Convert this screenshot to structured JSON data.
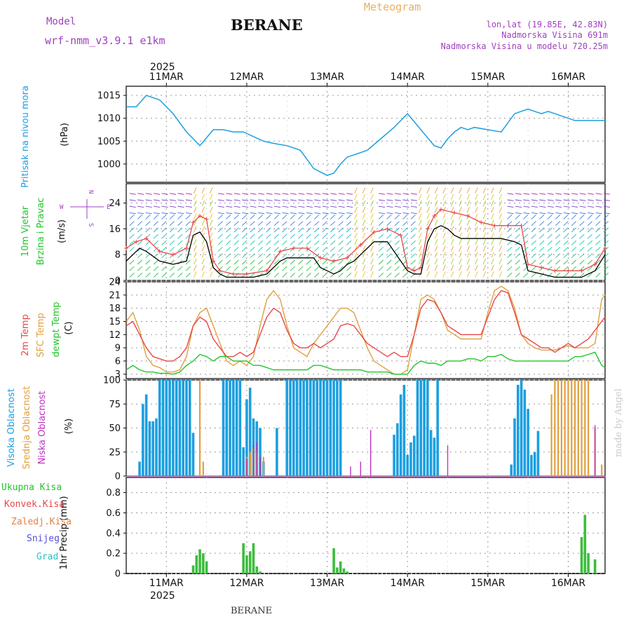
{
  "header": {
    "model_label": "Model",
    "model_name": "wrf-nmm_v3.9.1 e1km",
    "station": "BERANE",
    "meteogram_label": "Meteogram",
    "lonlat": "lon,lat (19.85E, 42.83N)",
    "elevation": "Nadmorska Visina 691m",
    "model_elevation": "Nadmorska Visina u modelu 720.25m",
    "year_top": "2025",
    "year_bottom": "2025",
    "footer_station": "BERANE",
    "watermark": "made by Angel"
  },
  "colors": {
    "pressure": "#1c9fe0",
    "temp2m": "#e8474a",
    "sfc": "#e0a040",
    "dewpt": "#22c52a",
    "high_cloud": "#1c9fe0",
    "mid_cloud": "#e0a040",
    "low_cloud": "#c030c0",
    "precip": "#3cbd3c",
    "wind_speed": "#000000",
    "wind_gust": "#e8474a",
    "axis_purple": "#a040c0"
  },
  "dates": [
    "11MAR",
    "12MAR",
    "13MAR",
    "14MAR",
    "15MAR",
    "16MAR"
  ],
  "chart_data": [
    {
      "type": "line",
      "name": "pressure",
      "ylabel": "Pritisak na nivou mora",
      "unit": "(hPa)",
      "yticks": [
        1000,
        1005,
        1010,
        1015
      ],
      "ylim": [
        996,
        1017
      ],
      "xlim": [
        0,
        143
      ],
      "series": [
        {
          "x": [
            0,
            3,
            6,
            10,
            14,
            18,
            22,
            26,
            29,
            32,
            35,
            38,
            41,
            44,
            48,
            52,
            56,
            60,
            62,
            64,
            66,
            68,
            72,
            76,
            80,
            84,
            88,
            92,
            94,
            96,
            98,
            100,
            102,
            104,
            108,
            112,
            116,
            120,
            122,
            124,
            126,
            128,
            130,
            132,
            134,
            136,
            138,
            140,
            143
          ],
          "y": [
            1012.5,
            1012.5,
            1015,
            1014,
            1011,
            1007,
            1004,
            1007.5,
            1007.5,
            1007,
            1007,
            1006,
            1005,
            1004.5,
            1004,
            1003,
            999,
            997.5,
            998,
            1000,
            1001.5,
            1002,
            1003,
            1005.5,
            1008,
            1011,
            1007.5,
            1004,
            1003.5,
            1005.5,
            1007,
            1008,
            1007.5,
            1008,
            1007.5,
            1007,
            1011,
            1012,
            1011.5,
            1011,
            1011.5,
            1011,
            1010.5,
            1010,
            1009.5,
            1009.5,
            1009.5,
            1009.5,
            1009.5
          ]
        }
      ]
    },
    {
      "type": "line",
      "name": "wind",
      "ylabel": "10m Vjetar Brzina i Pravac",
      "unit": "(m/s)",
      "yticks": [
        0,
        8,
        16,
        24
      ],
      "ylim": [
        0,
        30
      ],
      "xlim": [
        0,
        143
      ],
      "compass": {
        "n": "N",
        "e": "E",
        "w": "W",
        "s": "S"
      },
      "series": [
        {
          "name": "speed",
          "x": [
            0,
            2,
            4,
            6,
            10,
            14,
            18,
            20,
            22,
            24,
            26,
            28,
            30,
            34,
            38,
            42,
            46,
            48,
            50,
            52,
            54,
            56,
            58,
            60,
            62,
            64,
            66,
            68,
            70,
            72,
            74,
            76,
            78,
            80,
            84,
            86,
            88,
            90,
            92,
            94,
            96,
            98,
            100,
            104,
            108,
            112,
            116,
            118,
            120,
            124,
            128,
            132,
            136,
            140,
            143
          ],
          "y": [
            6,
            8,
            10,
            9,
            6,
            5,
            6,
            14,
            15,
            12,
            4,
            2,
            1,
            1,
            1,
            2,
            6,
            7,
            7,
            7,
            7,
            7,
            4,
            3,
            2,
            3,
            5,
            6,
            8,
            10,
            12,
            12,
            12,
            9,
            3,
            2,
            2,
            12,
            16,
            17,
            16,
            14,
            13,
            13,
            13,
            13,
            12,
            11,
            3,
            2,
            1,
            1,
            1,
            3,
            8
          ]
        },
        {
          "name": "gust",
          "x": [
            0,
            3,
            6,
            10,
            14,
            18,
            20,
            22,
            24,
            26,
            28,
            32,
            36,
            42,
            46,
            50,
            54,
            58,
            62,
            66,
            70,
            74,
            78,
            82,
            84,
            86,
            88,
            90,
            92,
            94,
            98,
            102,
            106,
            110,
            114,
            118,
            120,
            124,
            128,
            132,
            136,
            140,
            143
          ],
          "y": [
            10,
            12,
            13,
            9,
            8,
            10,
            18,
            20,
            19,
            6,
            3,
            2,
            2,
            3,
            9,
            10,
            10,
            7,
            6,
            7,
            11,
            15,
            16,
            14,
            4,
            3,
            4,
            16,
            20,
            22,
            21,
            20,
            18,
            17,
            17,
            17,
            5,
            4,
            3,
            3,
            3,
            5,
            10
          ]
        }
      ]
    },
    {
      "type": "line",
      "name": "temperature",
      "ylabel": "2m Temp SFC Temp dewpt Temp",
      "unit": "(C)",
      "yticks": [
        3,
        6,
        9,
        12,
        15,
        18,
        21,
        24
      ],
      "ylim": [
        2,
        24
      ],
      "xlim": [
        0,
        143
      ],
      "series": [
        {
          "name": "2m Temp",
          "x": [
            0,
            2,
            4,
            6,
            8,
            10,
            12,
            14,
            16,
            18,
            20,
            22,
            24,
            26,
            28,
            30,
            32,
            34,
            36,
            38,
            40,
            42,
            44,
            46,
            48,
            50,
            52,
            54,
            56,
            58,
            60,
            62,
            64,
            66,
            68,
            70,
            72,
            74,
            76,
            78,
            80,
            82,
            84,
            86,
            88,
            90,
            92,
            94,
            96,
            98,
            100,
            102,
            104,
            106,
            108,
            110,
            112,
            114,
            116,
            118,
            120,
            122,
            124,
            126,
            128,
            130,
            132,
            134,
            136,
            138,
            140,
            142,
            143
          ],
          "y": [
            14,
            15,
            12,
            9,
            7,
            6.5,
            6,
            6,
            7,
            9,
            14,
            16,
            15,
            11,
            9,
            7,
            7,
            8,
            7,
            8,
            12,
            16,
            18,
            17,
            13,
            10,
            9,
            9,
            10,
            9,
            10,
            11,
            14,
            14.5,
            14,
            12,
            10,
            9,
            8,
            7,
            8,
            7,
            7,
            12,
            18,
            20,
            19.5,
            17,
            14,
            13,
            12,
            12,
            12,
            12,
            16,
            20,
            22,
            21.5,
            17,
            12,
            11,
            10,
            9,
            9,
            8,
            9,
            10,
            9,
            10,
            11,
            13,
            15,
            16
          ]
        },
        {
          "name": "SFC Temp",
          "x": [
            0,
            2,
            4,
            6,
            8,
            10,
            12,
            14,
            16,
            18,
            20,
            22,
            24,
            26,
            28,
            30,
            32,
            34,
            36,
            38,
            40,
            42,
            44,
            46,
            48,
            50,
            52,
            54,
            56,
            58,
            60,
            62,
            64,
            66,
            68,
            70,
            72,
            74,
            76,
            78,
            80,
            82,
            84,
            86,
            88,
            90,
            92,
            94,
            96,
            98,
            100,
            102,
            104,
            106,
            108,
            110,
            112,
            114,
            116,
            118,
            120,
            122,
            124,
            126,
            128,
            130,
            132,
            134,
            136,
            138,
            140,
            142,
            143
          ],
          "y": [
            15,
            17,
            13,
            7,
            5,
            4.5,
            3.5,
            3.5,
            4,
            7,
            14,
            17,
            18,
            14,
            10,
            6,
            5,
            6,
            5,
            7,
            14,
            20,
            22,
            20,
            14,
            9,
            8,
            7,
            10,
            12,
            14,
            16,
            18,
            18,
            17,
            13,
            9,
            6,
            5,
            4,
            3,
            3,
            4,
            12,
            20,
            21,
            20,
            17,
            13,
            12,
            11,
            11,
            11,
            11,
            17,
            22,
            23,
            22,
            18,
            12,
            10,
            9,
            8.5,
            8.5,
            8.5,
            9,
            9.5,
            9,
            9,
            9,
            10,
            20,
            21
          ]
        },
        {
          "name": "dewpt Temp",
          "x": [
            0,
            2,
            4,
            6,
            8,
            10,
            12,
            14,
            16,
            18,
            20,
            22,
            24,
            26,
            28,
            30,
            32,
            34,
            36,
            38,
            40,
            42,
            44,
            46,
            48,
            50,
            52,
            54,
            56,
            58,
            60,
            62,
            64,
            66,
            68,
            70,
            72,
            74,
            76,
            78,
            80,
            82,
            84,
            86,
            88,
            90,
            92,
            94,
            96,
            98,
            100,
            102,
            104,
            106,
            108,
            110,
            112,
            114,
            116,
            118,
            120,
            122,
            124,
            126,
            128,
            130,
            132,
            134,
            136,
            138,
            140,
            142,
            143
          ],
          "y": [
            4,
            5,
            4,
            3.5,
            3.5,
            3.2,
            3.2,
            3,
            3.5,
            5,
            6,
            7.5,
            7,
            6,
            7,
            7,
            6,
            6,
            6,
            5,
            5,
            4.5,
            4,
            4,
            4,
            4,
            4,
            4,
            5,
            5,
            4.5,
            4,
            4,
            4,
            4,
            4,
            3.5,
            3.5,
            3.5,
            3.5,
            3,
            3,
            3,
            5,
            6,
            5.5,
            5.5,
            5,
            6,
            6,
            6,
            6.5,
            6.5,
            6,
            7,
            7,
            7.5,
            6.5,
            6,
            6,
            6,
            6,
            6,
            6,
            6,
            6,
            6,
            7,
            7,
            7.5,
            8,
            5,
            4.5
          ]
        }
      ]
    },
    {
      "type": "bar",
      "name": "cloud",
      "ylabel": "Visoka Oblacnost Srednja Oblacnost Niska Oblacnost",
      "unit": "(%)",
      "yticks": [
        0,
        25,
        50,
        75,
        100
      ],
      "ylim": [
        0,
        100
      ],
      "xlim": [
        0,
        143
      ],
      "series": [
        {
          "name": "Visoka Oblacnost",
          "x": [
            4,
            5,
            6,
            7,
            8,
            9,
            10,
            11,
            12,
            13,
            14,
            15,
            16,
            17,
            18,
            19,
            20,
            29,
            30,
            31,
            32,
            33,
            34,
            35,
            36,
            37,
            38,
            39,
            40,
            41,
            45,
            48,
            49,
            50,
            51,
            52,
            53,
            54,
            55,
            56,
            57,
            58,
            59,
            60,
            61,
            62,
            63,
            64,
            80,
            81,
            82,
            83,
            84,
            85,
            86,
            87,
            88,
            89,
            90,
            91,
            92,
            93,
            115,
            116,
            117,
            118,
            119,
            120,
            121,
            122,
            123
          ],
          "y": [
            15,
            75,
            85,
            57,
            57,
            60,
            100,
            100,
            100,
            100,
            100,
            100,
            100,
            100,
            100,
            100,
            45,
            100,
            100,
            100,
            100,
            100,
            100,
            30,
            80,
            92,
            60,
            57,
            50,
            15,
            50,
            100,
            100,
            100,
            100,
            100,
            100,
            100,
            100,
            100,
            100,
            100,
            100,
            100,
            100,
            100,
            100,
            100,
            43,
            55,
            85,
            95,
            22,
            35,
            42,
            100,
            100,
            100,
            100,
            48,
            40,
            100,
            12,
            60,
            95,
            100,
            90,
            70,
            22,
            25,
            47
          ]
        },
        {
          "name": "Srednja Oblacnost",
          "x": [
            22,
            23,
            36,
            37,
            38,
            39,
            41,
            127,
            128,
            129,
            130,
            131,
            132,
            133,
            134,
            135,
            136,
            137,
            138,
            140,
            142
          ],
          "y": [
            100,
            15,
            20,
            25,
            30,
            25,
            20,
            85,
            100,
            100,
            100,
            100,
            100,
            100,
            100,
            100,
            100,
            100,
            100,
            50,
            12
          ]
        },
        {
          "name": "Niska Oblacnost",
          "x": [
            36,
            38,
            39,
            40,
            67,
            70,
            73,
            96,
            140
          ],
          "y": [
            18,
            32,
            35,
            20,
            10,
            15,
            48,
            32,
            53
          ]
        }
      ]
    },
    {
      "type": "bar",
      "name": "precip",
      "ylabel": "1hr Precip",
      "unit": "(mm)",
      "yticks": [
        0,
        0.2,
        0.4,
        0.6,
        0.8
      ],
      "ylim": [
        0,
        0.95
      ],
      "xlim": [
        0,
        143
      ],
      "legend": [
        "Ukupna Kisa",
        "Konvek.Kisa",
        "Zaledj.Kisa",
        "Snijeg",
        "Grad"
      ],
      "series": [
        {
          "name": "Ukupna Kisa",
          "x": [
            20,
            21,
            22,
            23,
            24,
            35,
            36,
            37,
            38,
            39,
            40,
            62,
            63,
            64,
            65,
            66,
            136,
            137,
            138,
            140
          ],
          "y": [
            0.08,
            0.18,
            0.24,
            0.2,
            0.12,
            0.3,
            0.18,
            0.22,
            0.3,
            0.07,
            0.02,
            0.25,
            0.06,
            0.12,
            0.05,
            0.02,
            0.36,
            0.58,
            0.2,
            0.14
          ]
        }
      ]
    }
  ]
}
